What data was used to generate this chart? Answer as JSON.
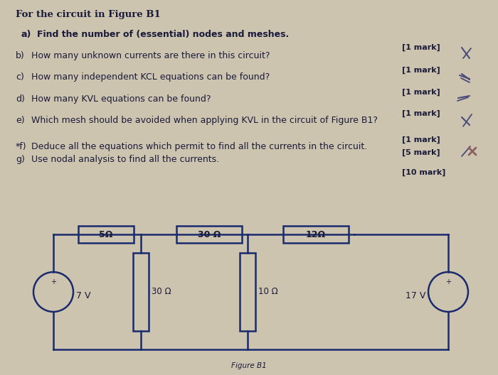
{
  "bg_color": "#cdc4b0",
  "title": "For the circuit in Figure B1",
  "questions": [
    {
      "label": "a)",
      "bold_label": true,
      "bold_text": true,
      "text": "Find the number of (essential) nodes and meshes.",
      "mark": ""
    },
    {
      "label": "b)",
      "bold_label": false,
      "bold_text": false,
      "text": "How many unknown currents are there in this circuit?",
      "mark": "[1 mark]"
    },
    {
      "label": "c)",
      "bold_label": false,
      "bold_text": false,
      "text": "How many independent KCL equations can be found?",
      "mark": "[1 mark]"
    },
    {
      "label": "d)",
      "bold_label": false,
      "bold_text": false,
      "text": "How many KVL equations can be found?",
      "mark": "[1 mark]"
    },
    {
      "label": "e)",
      "bold_label": false,
      "bold_text": false,
      "text": "Which mesh should be avoided when applying KVL in the circuit of Figure B1?",
      "mark": "[1 mark]"
    },
    {
      "label": "*f)",
      "bold_label": false,
      "bold_text": false,
      "text": "Deduce all the equations which permit to find all the currents in the circuit.",
      "mark1": "[1 mark]",
      "mark2": "[5 mark]",
      "mark": ""
    },
    {
      "label": "g)",
      "bold_label": false,
      "bold_text": false,
      "text": "Use nodal analysis to find all the currents.",
      "mark": ""
    }
  ],
  "mark_g": "[10 mark]",
  "text_color": "#1a1a3a",
  "line_color": "#1a2a6e",
  "check_color": "#4a4a7a",
  "cross_color": "#8b6060",
  "bg_color_circuit": "#cdc4b0",
  "circuit": {
    "caption": "Figure B1"
  }
}
